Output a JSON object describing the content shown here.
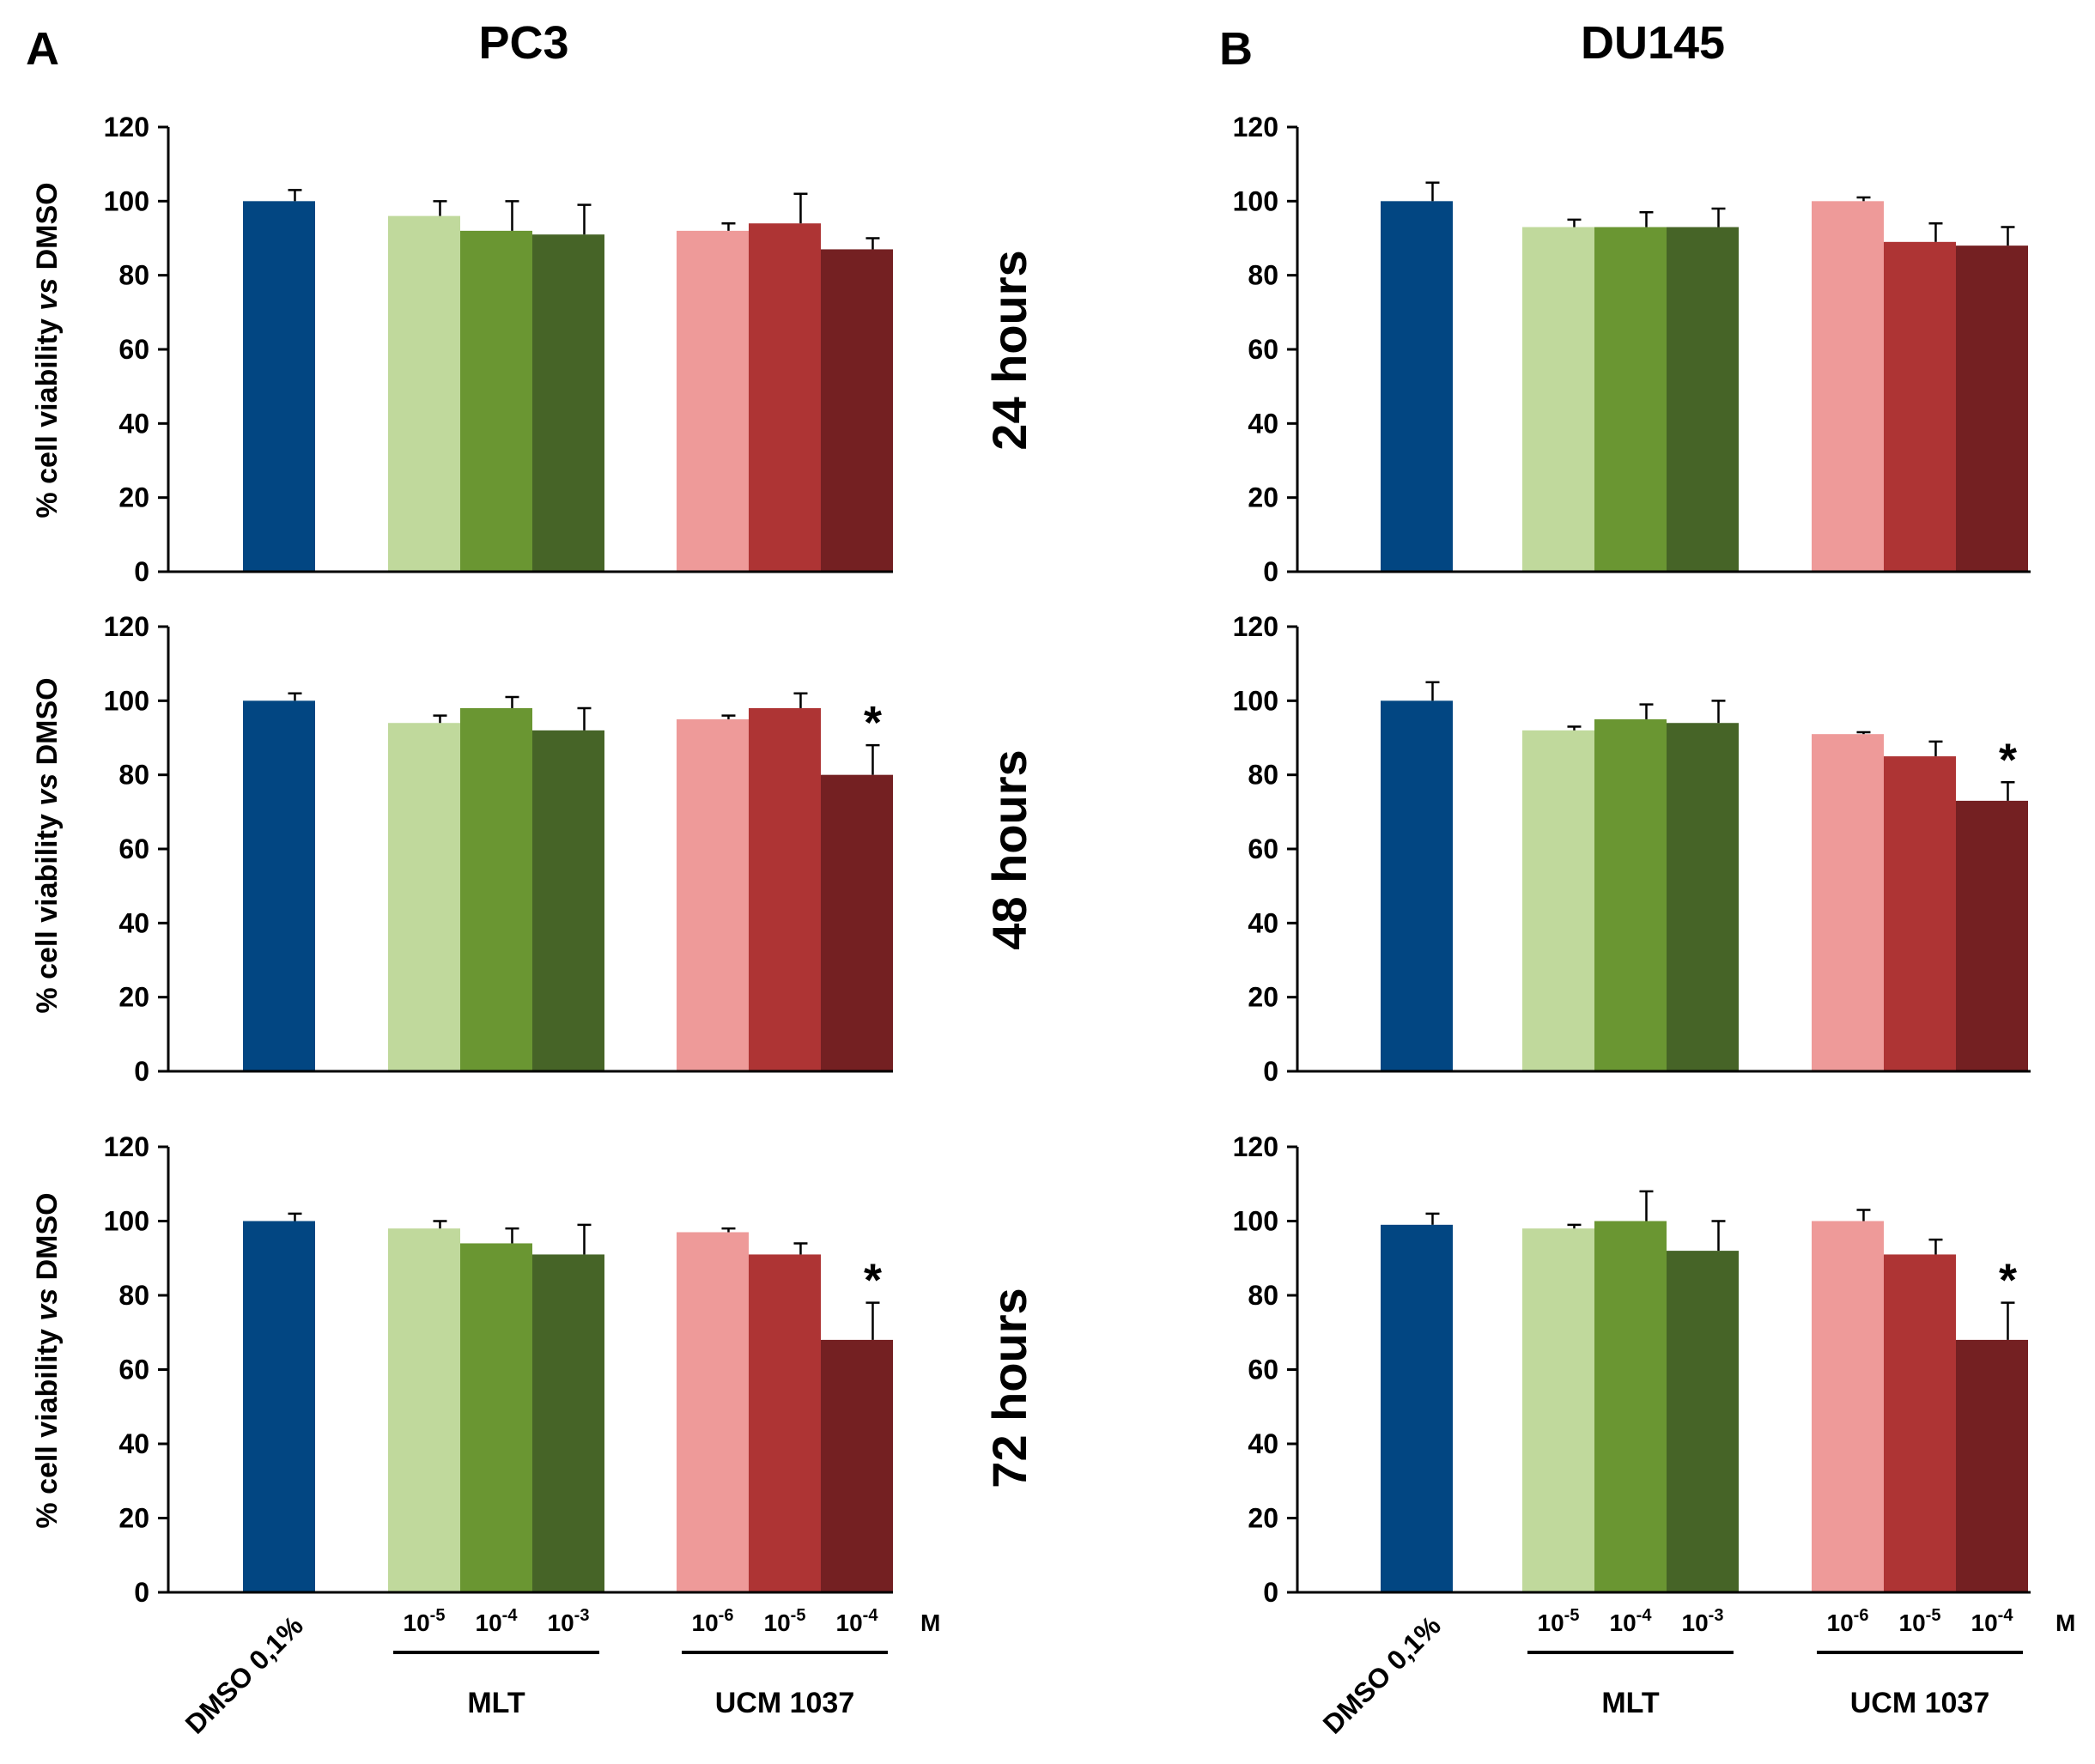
{
  "figure": {
    "panels": [
      {
        "letter": "A",
        "title": "PC3"
      },
      {
        "letter": "B",
        "title": "DU145"
      }
    ],
    "time_points": [
      "24 hours",
      "48 hours",
      "72 hours"
    ],
    "ylabel": {
      "pre": "% cell viability ",
      "italic": "vs",
      "post": " DMSO"
    },
    "category_labels": {
      "control": "DMSO 0,1%",
      "groups": [
        {
          "name": "MLT",
          "concentrations": [
            [
              "10",
              "-5"
            ],
            [
              "10",
              "-4"
            ],
            [
              "10",
              "-3"
            ]
          ]
        },
        {
          "name": "UCM 1037",
          "concentrations": [
            [
              "10",
              "-6"
            ],
            [
              "10",
              "-5"
            ],
            [
              "10",
              "-4"
            ]
          ]
        }
      ],
      "unit": "M"
    },
    "significance_marker": "*"
  },
  "chart_data": [
    {
      "type": "bar",
      "cell_line": "PC3",
      "time": "24 hours",
      "categories": [
        "DMSO 0,1%",
        "MLT 10^-5 M",
        "MLT 10^-4 M",
        "MLT 10^-3 M",
        "UCM 1037 10^-6 M",
        "UCM 1037 10^-5 M",
        "UCM 1037 10^-4 M"
      ],
      "values": [
        100,
        96,
        92,
        91,
        92,
        94,
        87
      ],
      "errors": [
        3,
        4,
        8,
        8,
        2,
        8,
        3
      ],
      "significant": [
        false,
        false,
        false,
        false,
        false,
        false,
        false
      ],
      "ylabel": "% cell viability vs DMSO",
      "ylim": [
        0,
        120
      ],
      "yticks": [
        0,
        20,
        40,
        60,
        80,
        100,
        120
      ]
    },
    {
      "type": "bar",
      "cell_line": "PC3",
      "time": "48 hours",
      "categories": [
        "DMSO 0,1%",
        "MLT 10^-5 M",
        "MLT 10^-4 M",
        "MLT 10^-3 M",
        "UCM 1037 10^-6 M",
        "UCM 1037 10^-5 M",
        "UCM 1037 10^-4 M"
      ],
      "values": [
        100,
        94,
        98,
        92,
        95,
        98,
        80
      ],
      "errors": [
        2,
        2,
        3,
        6,
        1,
        4,
        8
      ],
      "significant": [
        false,
        false,
        false,
        false,
        false,
        false,
        true
      ],
      "ylabel": "% cell viability vs DMSO",
      "ylim": [
        0,
        120
      ],
      "yticks": [
        0,
        20,
        40,
        60,
        80,
        100,
        120
      ]
    },
    {
      "type": "bar",
      "cell_line": "PC3",
      "time": "72 hours",
      "categories": [
        "DMSO 0,1%",
        "MLT 10^-5 M",
        "MLT 10^-4 M",
        "MLT 10^-3 M",
        "UCM 1037 10^-6 M",
        "UCM 1037 10^-5 M",
        "UCM 1037 10^-4 M"
      ],
      "values": [
        100,
        98,
        94,
        91,
        97,
        91,
        68
      ],
      "errors": [
        2,
        2,
        4,
        8,
        1,
        3,
        10
      ],
      "significant": [
        false,
        false,
        false,
        false,
        false,
        false,
        true
      ],
      "ylabel": "% cell viability vs DMSO",
      "ylim": [
        0,
        120
      ],
      "yticks": [
        0,
        20,
        40,
        60,
        80,
        100,
        120
      ]
    },
    {
      "type": "bar",
      "cell_line": "DU145",
      "time": "24 hours",
      "categories": [
        "DMSO 0,1%",
        "MLT 10^-5 M",
        "MLT 10^-4 M",
        "MLT 10^-3 M",
        "UCM 1037 10^-6 M",
        "UCM 1037 10^-5 M",
        "UCM 1037 10^-4 M"
      ],
      "values": [
        100,
        93,
        93,
        93,
        100,
        89,
        88
      ],
      "errors": [
        5,
        2,
        4,
        5,
        1,
        5,
        5
      ],
      "significant": [
        false,
        false,
        false,
        false,
        false,
        false,
        false
      ],
      "ylabel": "",
      "ylim": [
        0,
        120
      ],
      "yticks": [
        0,
        20,
        40,
        60,
        80,
        100,
        120
      ]
    },
    {
      "type": "bar",
      "cell_line": "DU145",
      "time": "48 hours",
      "categories": [
        "DMSO 0,1%",
        "MLT 10^-5 M",
        "MLT 10^-4 M",
        "MLT 10^-3 M",
        "UCM 1037 10^-6 M",
        "UCM 1037 10^-5 M",
        "UCM 1037 10^-4 M"
      ],
      "values": [
        100,
        92,
        95,
        94,
        91,
        85,
        73
      ],
      "errors": [
        5,
        1,
        4,
        6,
        0.5,
        4,
        5
      ],
      "significant": [
        false,
        false,
        false,
        false,
        false,
        false,
        true
      ],
      "ylabel": "",
      "ylim": [
        0,
        120
      ],
      "yticks": [
        0,
        20,
        40,
        60,
        80,
        100,
        120
      ]
    },
    {
      "type": "bar",
      "cell_line": "DU145",
      "time": "72 hours",
      "categories": [
        "DMSO 0,1%",
        "MLT 10^-5 M",
        "MLT 10^-4 M",
        "MLT 10^-3 M",
        "UCM 1037 10^-6 M",
        "UCM 1037 10^-5 M",
        "UCM 1037 10^-4 M"
      ],
      "values": [
        99,
        98,
        100,
        92,
        100,
        91,
        68
      ],
      "errors": [
        3,
        1,
        8,
        8,
        3,
        4,
        10
      ],
      "significant": [
        false,
        false,
        false,
        false,
        false,
        false,
        true
      ],
      "ylabel": "",
      "ylim": [
        0,
        120
      ],
      "yticks": [
        0,
        20,
        40,
        60,
        80,
        100,
        120
      ]
    }
  ],
  "colors": {
    "bars": [
      "#024682",
      "#c0d99c",
      "#6a9632",
      "#466427",
      "#ee9a99",
      "#ae3434",
      "#742022"
    ],
    "axis": "#000000",
    "text": "#000000"
  }
}
